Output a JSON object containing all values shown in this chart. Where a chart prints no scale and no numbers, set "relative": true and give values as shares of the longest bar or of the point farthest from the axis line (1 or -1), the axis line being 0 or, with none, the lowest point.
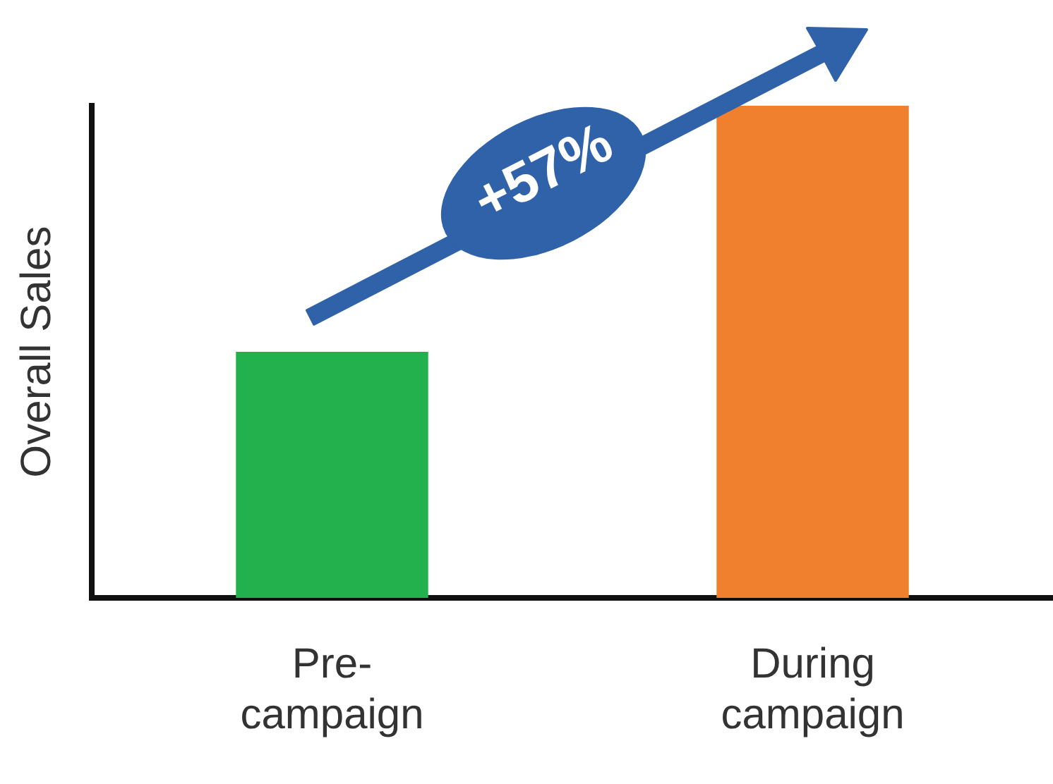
{
  "chart_data": {
    "type": "bar",
    "relative": true,
    "ylabel": "Overall Sales",
    "categories": [
      "Pre-campaign",
      "During campaign"
    ],
    "values": [
      0.5,
      1
    ],
    "colors": [
      "#22b14c",
      "#f07f2e"
    ],
    "annotations": [
      "+57%"
    ],
    "grid": false,
    "legend": false
  }
}
